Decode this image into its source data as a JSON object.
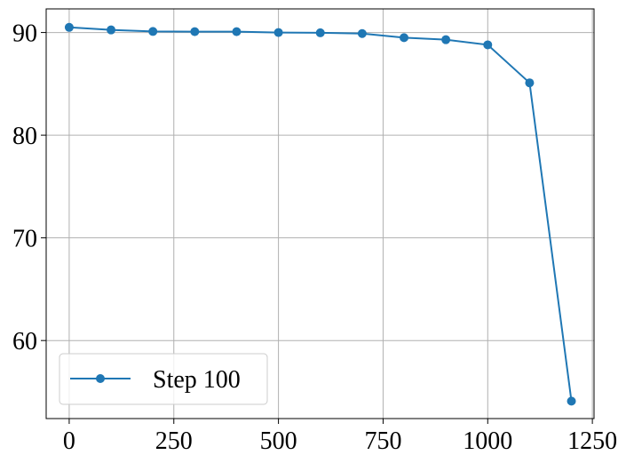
{
  "chart_data": {
    "type": "line",
    "x": [
      0,
      100,
      200,
      300,
      400,
      500,
      600,
      700,
      800,
      900,
      1000,
      1100,
      1200
    ],
    "series": [
      {
        "name": "Step 100",
        "color": "#1f77b4",
        "values": [
          90.5,
          90.25,
          90.1,
          90.08,
          90.08,
          90.0,
          89.97,
          89.9,
          89.5,
          89.3,
          88.8,
          85.1,
          54.1
        ]
      }
    ],
    "xlim": [
      -55,
      1254
    ],
    "ylim": [
      52.4,
      92.3
    ],
    "xticks": [
      0,
      250,
      500,
      750,
      1000,
      1250
    ],
    "yticks": [
      60,
      70,
      80,
      90
    ],
    "grid": true,
    "legend": "lower left"
  }
}
